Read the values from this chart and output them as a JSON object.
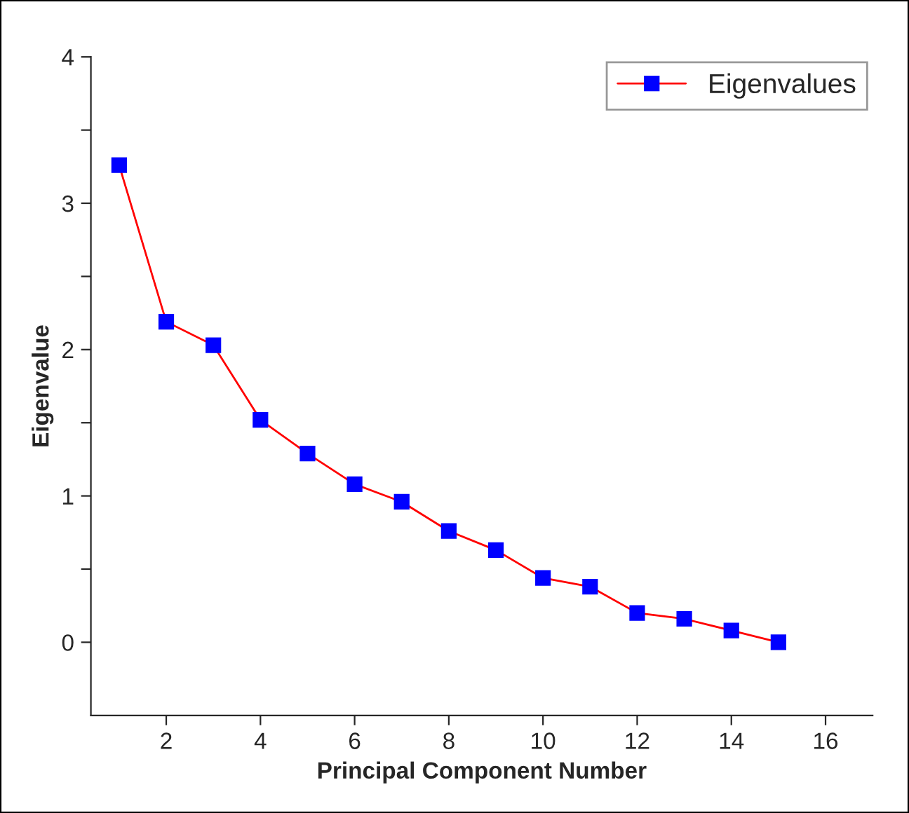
{
  "chart_data": {
    "type": "line",
    "xlabel": "Principal Component Number",
    "ylabel": "Eigenvalue",
    "x": [
      1,
      2,
      3,
      4,
      5,
      6,
      7,
      8,
      9,
      10,
      11,
      12,
      13,
      14,
      15
    ],
    "series": [
      {
        "name": "Eigenvalues",
        "color": "#ff0000",
        "colors": [
          "#0000ff",
          "#0000ff",
          "#0000ff",
          "#0000ff",
          "#0000ff",
          "#0000ff",
          "#0000ff",
          "#0000ff",
          "#0000ff",
          "#0000ff",
          "#0000ff",
          "#0000ff",
          "#0000ff",
          "#0000ff",
          "#0000ff"
        ],
        "values": [
          3.26,
          2.19,
          2.03,
          1.52,
          1.29,
          1.08,
          0.96,
          0.76,
          0.63,
          0.44,
          0.38,
          0.2,
          0.16,
          0.08,
          0.0
        ]
      }
    ],
    "xlim": [
      0.4,
      17
    ],
    "xticks": [
      2,
      4,
      6,
      8,
      10,
      12,
      14,
      16
    ],
    "ylim": [
      -0.5,
      4
    ],
    "yticks": [
      0,
      {
        "value": 0.5,
        "label": null
      },
      1,
      {
        "value": 1.5,
        "label": null
      },
      2,
      {
        "value": 2.5,
        "label": null
      },
      3,
      {
        "value": 3.5,
        "label": null
      },
      4
    ],
    "marker": "square",
    "line_style": "solid",
    "legend": "top right",
    "grid": false
  }
}
